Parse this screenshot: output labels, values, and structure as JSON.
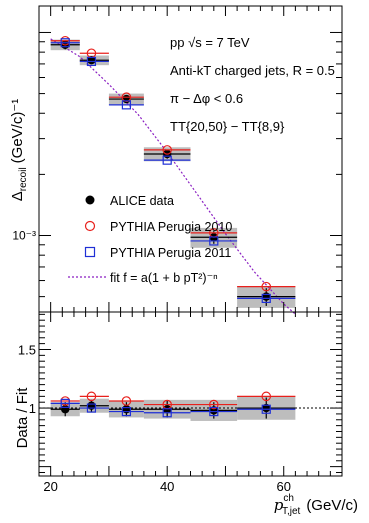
{
  "chart_data": [
    {
      "type": "scatter",
      "panel": "top",
      "yscale": "log",
      "ylabel": {
        "main": "Δ",
        "sub": "recoil",
        "units": "(GeV/c)⁻¹"
      },
      "ylim": [
        0.00042,
        0.0135
      ],
      "yticks": [
        {
          "value": 0.001,
          "label": "10⁻³"
        }
      ],
      "xlim": [
        18,
        70
      ],
      "annotations": [
        "pp √s = 7 TeV",
        "Anti-kT charged jets, R = 0.5",
        "π − Δφ < 0.6",
        "TT{20,50} − TT{8,9}"
      ],
      "legend": [
        {
          "key": "alice",
          "label": "ALICE data",
          "marker": "filled-circle",
          "color": "#000000"
        },
        {
          "key": "p2010",
          "label": "PYTHIA Perugia 2010",
          "marker": "open-circle",
          "color": "#e8201c"
        },
        {
          "key": "p2011",
          "label": "PYTHIA Perugia 2011",
          "marker": "open-square",
          "color": "#1f2fd6"
        },
        {
          "key": "fit",
          "label": "fit  f = a(1 + b pT²)⁻ⁿ",
          "marker": "dotted-line",
          "color": "#8a1fc2"
        }
      ],
      "bins": [
        {
          "lo": 20,
          "hi": 25,
          "center": 22.5
        },
        {
          "lo": 25,
          "hi": 30,
          "center": 27.0
        },
        {
          "lo": 30,
          "hi": 36,
          "center": 33.0
        },
        {
          "lo": 36,
          "hi": 44,
          "center": 40.0
        },
        {
          "lo": 44,
          "hi": 52,
          "center": 48.0
        },
        {
          "lo": 52,
          "hi": 62,
          "center": 57.0
        }
      ],
      "series": [
        {
          "name": "ALICE data",
          "key": "alice",
          "values": [
            0.0087,
            0.0073,
            0.0047,
            0.00252,
            0.00098,
            0.0005
          ],
          "stat_up": [
            0.00044,
            0.0003,
            0.0002,
            0.00013,
            7e-05,
            5e-05
          ],
          "stat_dn": [
            0.00044,
            0.0003,
            0.0002,
            0.00013,
            7e-05,
            5e-05
          ],
          "sys_up": [
            0.00052,
            0.0004,
            0.0003,
            0.0002,
            0.00011,
            6e-05
          ],
          "sys_dn": [
            0.00052,
            0.0004,
            0.0003,
            0.0002,
            0.00011,
            6e-05
          ]
        },
        {
          "name": "PYTHIA Perugia 2010",
          "key": "p2010",
          "values": [
            0.0091,
            0.0079,
            0.0048,
            0.00264,
            0.00103,
            0.00056
          ]
        },
        {
          "name": "PYTHIA Perugia 2011",
          "key": "p2011",
          "values": [
            0.0089,
            0.0072,
            0.0044,
            0.00235,
            0.00094,
            0.00049
          ]
        }
      ],
      "fit": {
        "x": [
          20,
          25,
          30,
          35,
          40,
          45,
          50,
          55,
          60,
          62
        ],
        "y": [
          0.0093,
          0.0076,
          0.00555,
          0.00395,
          0.00257,
          0.00162,
          0.00102,
          0.00066,
          0.00046,
          0.00041
        ]
      }
    },
    {
      "type": "scatter",
      "panel": "bottom",
      "ylabel": "Data / Fit",
      "ylim": [
        0.42,
        1.82
      ],
      "yticks": [
        {
          "value": 1,
          "label": "1"
        },
        {
          "value": 1.5,
          "label": "1.5"
        }
      ],
      "xlim": [
        18,
        70
      ],
      "xticks": [
        {
          "value": 20,
          "label": "20"
        },
        {
          "value": 40,
          "label": "40"
        },
        {
          "value": 60,
          "label": "60"
        }
      ],
      "xlabel": {
        "main": "p",
        "sup": "ch",
        "sub": "T,jet",
        "units": "(GeV/c)"
      },
      "reference_line": 1,
      "series": [
        {
          "name": "ALICE data",
          "key": "alice",
          "values": [
            0.99,
            1.02,
            0.99,
            0.99,
            0.98,
            1.0
          ],
          "stat": [
            0.06,
            0.05,
            0.06,
            0.07,
            0.07,
            0.09
          ],
          "sys": [
            0.06,
            0.06,
            0.07,
            0.08,
            0.09,
            0.1
          ]
        },
        {
          "name": "PYTHIA Perugia 2010",
          "key": "p2010",
          "values": [
            1.06,
            1.1,
            1.06,
            1.03,
            1.03,
            1.1
          ]
        },
        {
          "name": "PYTHIA Perugia 2011",
          "key": "p2011",
          "values": [
            1.04,
            1.0,
            0.97,
            0.96,
            0.97,
            0.99
          ]
        }
      ]
    }
  ]
}
